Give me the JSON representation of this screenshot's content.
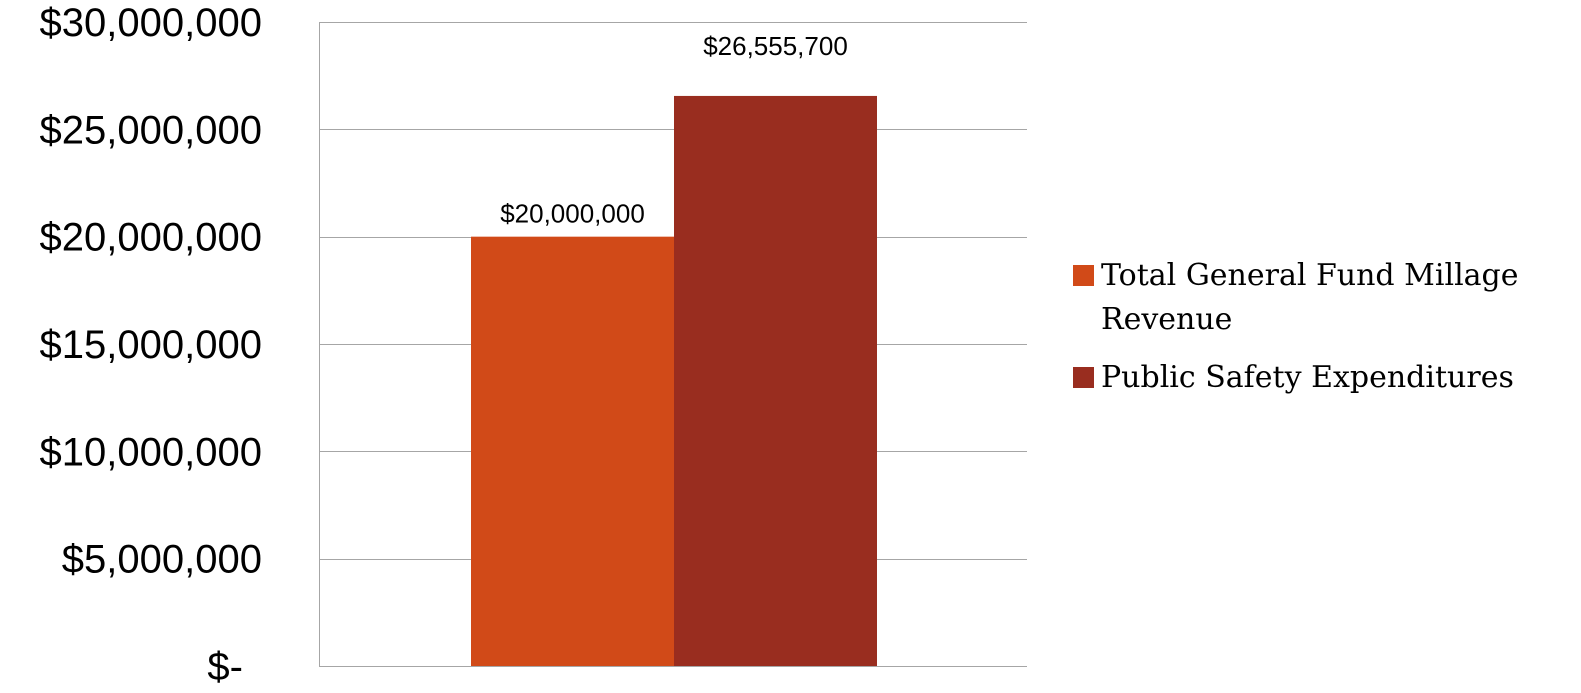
{
  "chart_data": {
    "type": "bar",
    "categories": [
      ""
    ],
    "series": [
      {
        "name": "Total General Fund Millage Revenue",
        "values": [
          20000000
        ],
        "color": "#D14A18",
        "label": "$20,000,000"
      },
      {
        "name": "Public Safety Expenditures",
        "values": [
          26555700
        ],
        "color": "#992D1F",
        "label": "$26,555,700"
      }
    ],
    "ylim": [
      0,
      30000000
    ],
    "y_ticks": [
      {
        "value": 0,
        "label": "$-"
      },
      {
        "value": 5000000,
        "label": "$5,000,000"
      },
      {
        "value": 10000000,
        "label": "$10,000,000"
      },
      {
        "value": 15000000,
        "label": "$15,000,000"
      },
      {
        "value": 20000000,
        "label": "$20,000,000"
      },
      {
        "value": 25000000,
        "label": "$25,000,000"
      },
      {
        "value": 30000000,
        "label": "$30,000,000"
      }
    ],
    "grid": true,
    "legend_position": "right",
    "legend_lines": [
      [
        "Total General Fund Millage",
        "Revenue"
      ],
      [
        "Public Safety Expenditures"
      ]
    ],
    "gridline_color": "#A6A6A6"
  }
}
